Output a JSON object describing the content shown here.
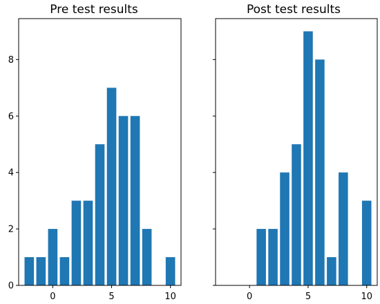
{
  "chart_data": [
    {
      "type": "bar",
      "title": "Pre test results",
      "x": [
        -2,
        -1,
        0,
        1,
        2,
        3,
        4,
        5,
        6,
        7,
        8,
        10
      ],
      "values": [
        1,
        1,
        2,
        1,
        3,
        3,
        5,
        7,
        6,
        6,
        2,
        1
      ],
      "xticks": [
        0,
        5,
        10
      ],
      "yticks": [
        0,
        2,
        4,
        6,
        8
      ],
      "xlim": [
        -2.9,
        10.9
      ],
      "ylim": [
        0,
        9.45
      ],
      "xlabel": "",
      "ylabel": "",
      "color": "#1f77b4"
    },
    {
      "type": "bar",
      "title": "Post test results",
      "x": [
        1,
        2,
        3,
        4,
        5,
        6,
        7,
        8,
        10
      ],
      "values": [
        2,
        2,
        4,
        5,
        9,
        8,
        1,
        4,
        3
      ],
      "xticks": [
        0,
        5,
        10
      ],
      "yticks": [
        0,
        2,
        4,
        6,
        8
      ],
      "xlim": [
        -2.9,
        10.9
      ],
      "ylim": [
        0,
        9.45
      ],
      "xlabel": "",
      "ylabel": "",
      "color": "#1f77b4",
      "y_tick_labels_visible": false
    }
  ]
}
